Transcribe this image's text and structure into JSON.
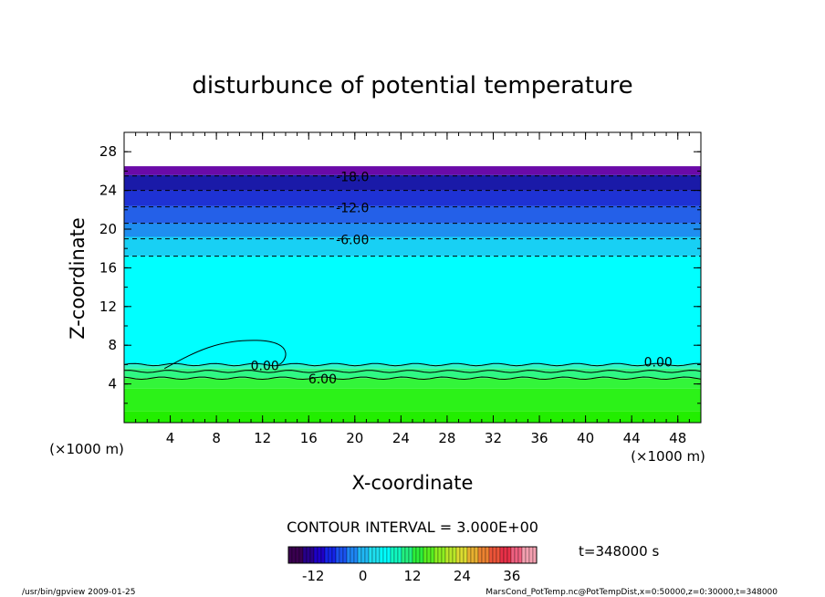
{
  "chart_data": {
    "type": "heatmap",
    "title": "disturbunce of potential temperature",
    "xlabel": "X-coordinate",
    "ylabel": "Z-coordinate",
    "x_unit_left": "(×1000 m)",
    "x_unit_right": "(×1000 m)",
    "xlim": [
      0,
      50
    ],
    "ylim": [
      0,
      30
    ],
    "x_ticks": [
      4,
      8,
      12,
      16,
      20,
      24,
      28,
      32,
      36,
      40,
      44,
      48
    ],
    "y_ticks": [
      4,
      8,
      12,
      16,
      20,
      24,
      28
    ],
    "top_of_field": 26.5,
    "bands": [
      {
        "z0": 0,
        "z1": 1.2,
        "color": "#22ee00"
      },
      {
        "z0": 1.2,
        "z1": 3.5,
        "color": "#2cf218"
      },
      {
        "z0": 3.5,
        "z1": 4.6,
        "color": "#33f53a"
      },
      {
        "z0": 4.6,
        "z1": 5.6,
        "color": "#30f884"
      },
      {
        "z0": 5.6,
        "z1": 6.0,
        "color": "#2ef7c2"
      },
      {
        "z0": 6.0,
        "z1": 17.2,
        "color": "#00ffff"
      },
      {
        "z0": 17.2,
        "z1": 19.2,
        "color": "#18d0f4"
      },
      {
        "z0": 19.2,
        "z1": 20.6,
        "color": "#1e8ef0"
      },
      {
        "z0": 20.6,
        "z1": 22.4,
        "color": "#2460e8"
      },
      {
        "z0": 22.4,
        "z1": 24.0,
        "color": "#1e32d4"
      },
      {
        "z0": 24.0,
        "z1": 25.6,
        "color": "#1a1aa8"
      },
      {
        "z0": 25.6,
        "z1": 26.5,
        "color": "#6a0aa8"
      }
    ],
    "contours": [
      {
        "level": -18,
        "z": 25.5,
        "label": "-18.0",
        "label_x": 19.8
      },
      {
        "level": -15,
        "z": 24.0,
        "label": "",
        "label_x": 0
      },
      {
        "level": -12,
        "z": 22.3,
        "label": "-12.0",
        "label_x": 19.8
      },
      {
        "level": -9,
        "z": 20.6,
        "label": "",
        "label_x": 0
      },
      {
        "level": -6,
        "z": 19.0,
        "label": "-6.00",
        "label_x": 19.8
      },
      {
        "level": -3,
        "z": 17.2,
        "label": "",
        "label_x": 0
      }
    ],
    "solid_contours": [
      {
        "level": 0,
        "z": 6.0,
        "label": "0.00",
        "label_x": 12.2,
        "label_x2": 46.3
      },
      {
        "level": 3,
        "z": 5.3,
        "label": "",
        "label_x": 0
      },
      {
        "level": 6,
        "z": 4.6,
        "label": "6.00",
        "label_x": 17.2
      }
    ],
    "color_scale": {
      "min": -18,
      "max": 42,
      "tick_labels": [
        "-12",
        "0",
        "12",
        "24",
        "36"
      ],
      "tick_values": [
        -12,
        0,
        12,
        24,
        36
      ],
      "colors": [
        "#3a0050",
        "#28008a",
        "#1e00c8",
        "#1424e8",
        "#1a52f0",
        "#1e86f4",
        "#20b8f4",
        "#1ee0f0",
        "#00ffff",
        "#10f8c0",
        "#22f080",
        "#2cee3a",
        "#58ee20",
        "#8cee20",
        "#b8e828",
        "#dcdc30",
        "#e8b030",
        "#ec8230",
        "#ec5438",
        "#e83048",
        "#f06080",
        "#f4a0b0"
      ]
    },
    "contour_interval": "CONTOUR INTERVAL = 3.000E+00",
    "time_label": "t=348000 s",
    "footer_left": "/usr/bin/gpview  2009-01-25",
    "footer_right": "MarsCond_PotTemp.nc@PotTempDist,x=0:50000,z=0:30000,t=348000"
  }
}
